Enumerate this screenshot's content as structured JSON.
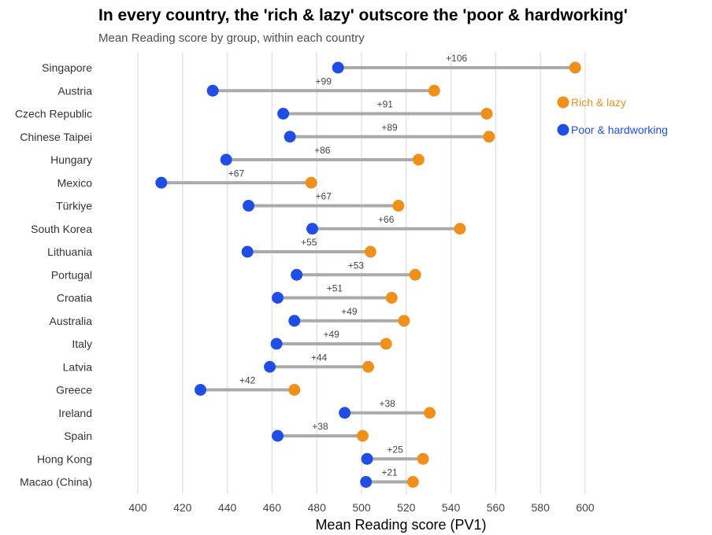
{
  "chart_data": {
    "type": "dumbbell",
    "title": "In every country, the 'rich & lazy' outscore the 'poor & hardworking'",
    "subtitle": "Mean Reading score by group, within each country",
    "xlabel": "Mean Reading score (PV1)",
    "xlim": [
      391,
      605
    ],
    "xticks": [
      400,
      420,
      440,
      460,
      480,
      500,
      520,
      540,
      560,
      580,
      600
    ],
    "grid": "vertical",
    "legend_position": "top-right",
    "series": [
      {
        "name": "Rich & lazy",
        "color": "#F0901B"
      },
      {
        "name": "Poor & hardworking",
        "color": "#1F4EE6"
      }
    ],
    "connector_color": "#AAAAAA",
    "countries": [
      {
        "name": "Singapore",
        "poor": 489.5,
        "rich": 595.5,
        "diff": "+106"
      },
      {
        "name": "Austria",
        "poor": 433.5,
        "rich": 532.5,
        "diff": "+99"
      },
      {
        "name": "Czech Republic",
        "poor": 465,
        "rich": 556,
        "diff": "+91"
      },
      {
        "name": "Chinese Taipei",
        "poor": 468,
        "rich": 557,
        "diff": "+89"
      },
      {
        "name": "Hungary",
        "poor": 439.5,
        "rich": 525.5,
        "diff": "+86"
      },
      {
        "name": "Mexico",
        "poor": 410.5,
        "rich": 477.5,
        "diff": "+67"
      },
      {
        "name": "Türkiye",
        "poor": 449.5,
        "rich": 516.5,
        "diff": "+67"
      },
      {
        "name": "South Korea",
        "poor": 478,
        "rich": 544,
        "diff": "+66"
      },
      {
        "name": "Lithuania",
        "poor": 449,
        "rich": 504,
        "diff": "+55"
      },
      {
        "name": "Portugal",
        "poor": 471,
        "rich": 524,
        "diff": "+53"
      },
      {
        "name": "Croatia",
        "poor": 462.5,
        "rich": 513.5,
        "diff": "+51"
      },
      {
        "name": "Australia",
        "poor": 470,
        "rich": 519,
        "diff": "+49"
      },
      {
        "name": "Italy",
        "poor": 462,
        "rich": 511,
        "diff": "+49"
      },
      {
        "name": "Latvia",
        "poor": 459,
        "rich": 503,
        "diff": "+44"
      },
      {
        "name": "Greece",
        "poor": 428,
        "rich": 470,
        "diff": "+42"
      },
      {
        "name": "Ireland",
        "poor": 492.5,
        "rich": 530.5,
        "diff": "+38"
      },
      {
        "name": "Spain",
        "poor": 462.5,
        "rich": 500.5,
        "diff": "+38"
      },
      {
        "name": "Hong Kong",
        "poor": 502.5,
        "rich": 527.5,
        "diff": "+25"
      },
      {
        "name": "Macao (China)",
        "poor": 502,
        "rich": 523,
        "diff": "+21"
      }
    ]
  }
}
